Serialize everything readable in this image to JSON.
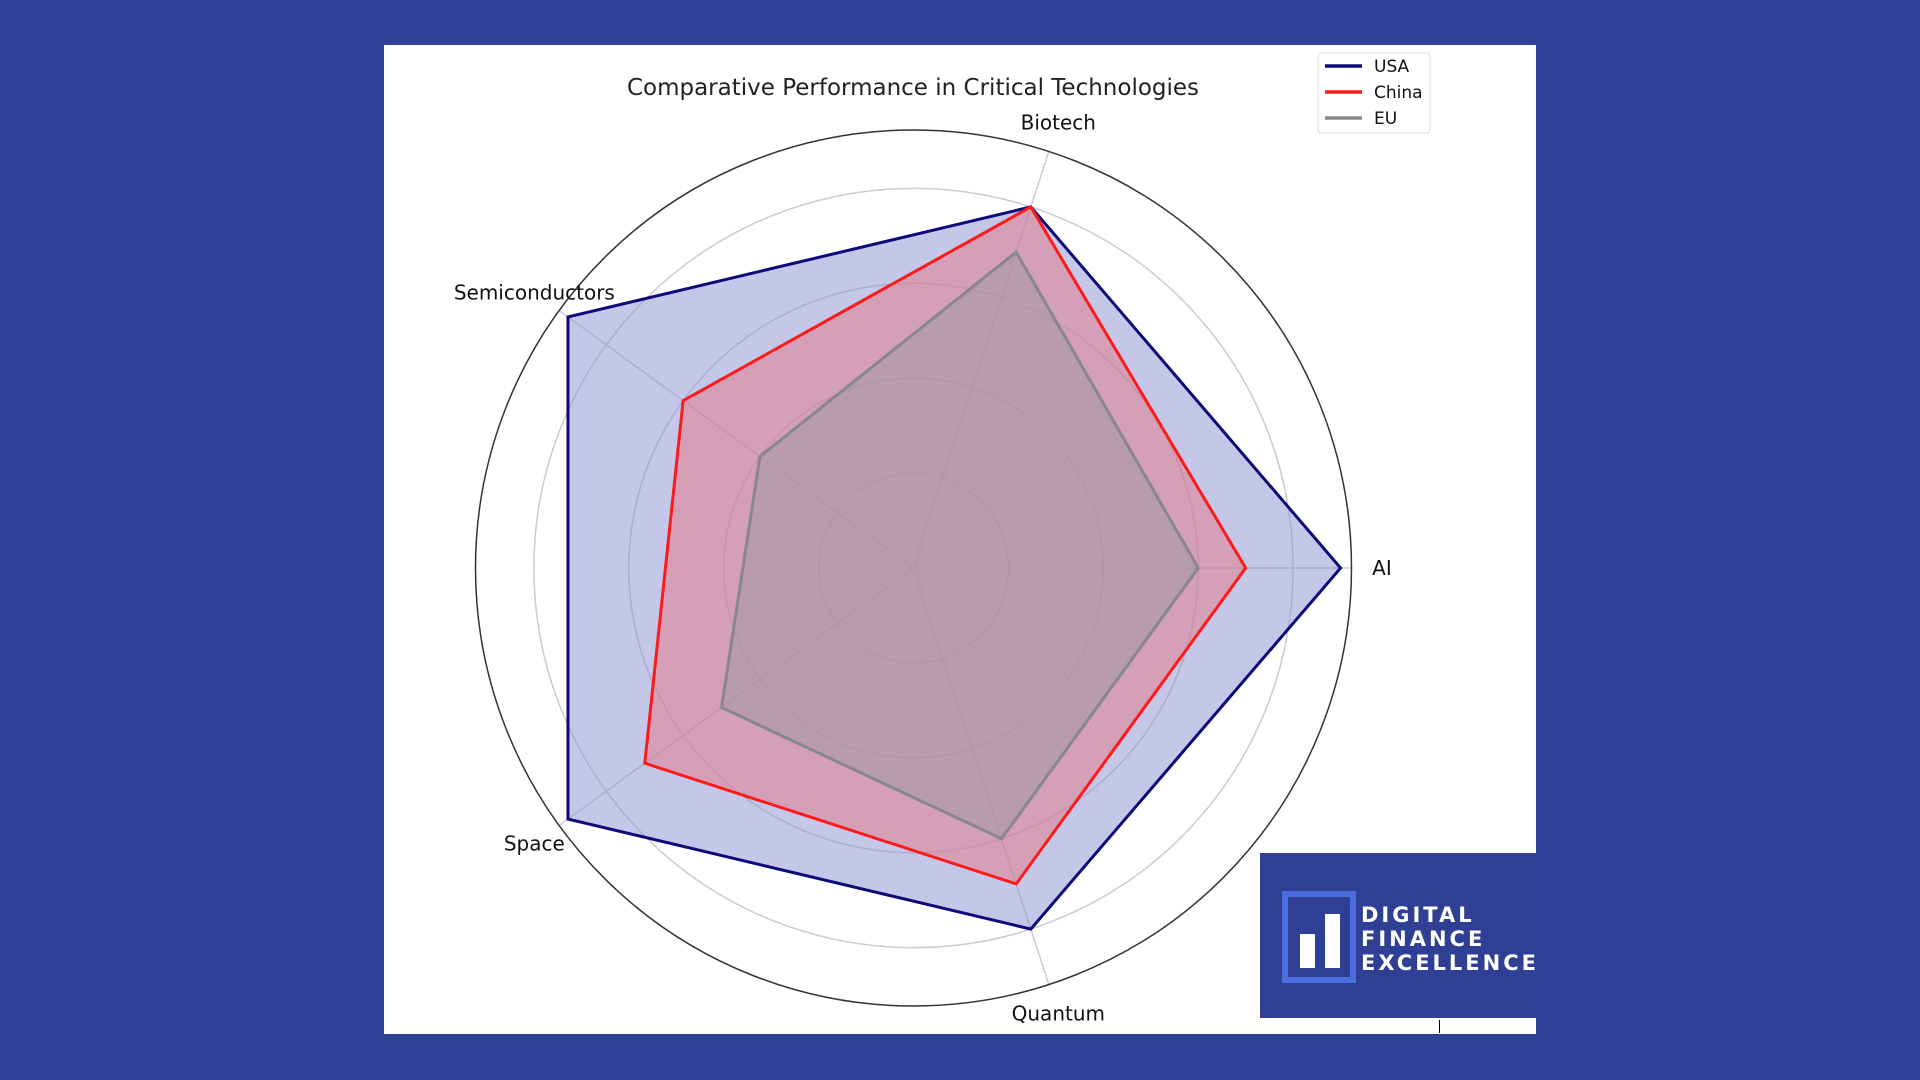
{
  "chart_data": {
    "type": "radar",
    "title": "Comparative Performance in Critical Technologies",
    "categories": [
      "AI",
      "Biotech",
      "Semiconductors",
      "Space",
      "Quantum"
    ],
    "series": [
      {
        "name": "USA",
        "values": [
          90,
          80,
          90,
          90,
          80
        ],
        "color": "#0b0b7a",
        "fill": "#8a8fcf"
      },
      {
        "name": "China",
        "values": [
          70,
          80,
          60,
          70,
          70
        ],
        "color": "#ff1a1a",
        "fill": "#e8788a"
      },
      {
        "name": "EU",
        "values": [
          60,
          70,
          40,
          50,
          60
        ],
        "color": "#888888",
        "fill": "#9a9a9a"
      }
    ],
    "rlim": [
      0,
      92.3
    ],
    "grid_rings": [
      20,
      40,
      60,
      80
    ],
    "grid": true,
    "legend_position": "top-right"
  },
  "logo": {
    "line1": "DIGITAL",
    "line2": "FINANCE",
    "line3": "EXCELLENCE"
  }
}
